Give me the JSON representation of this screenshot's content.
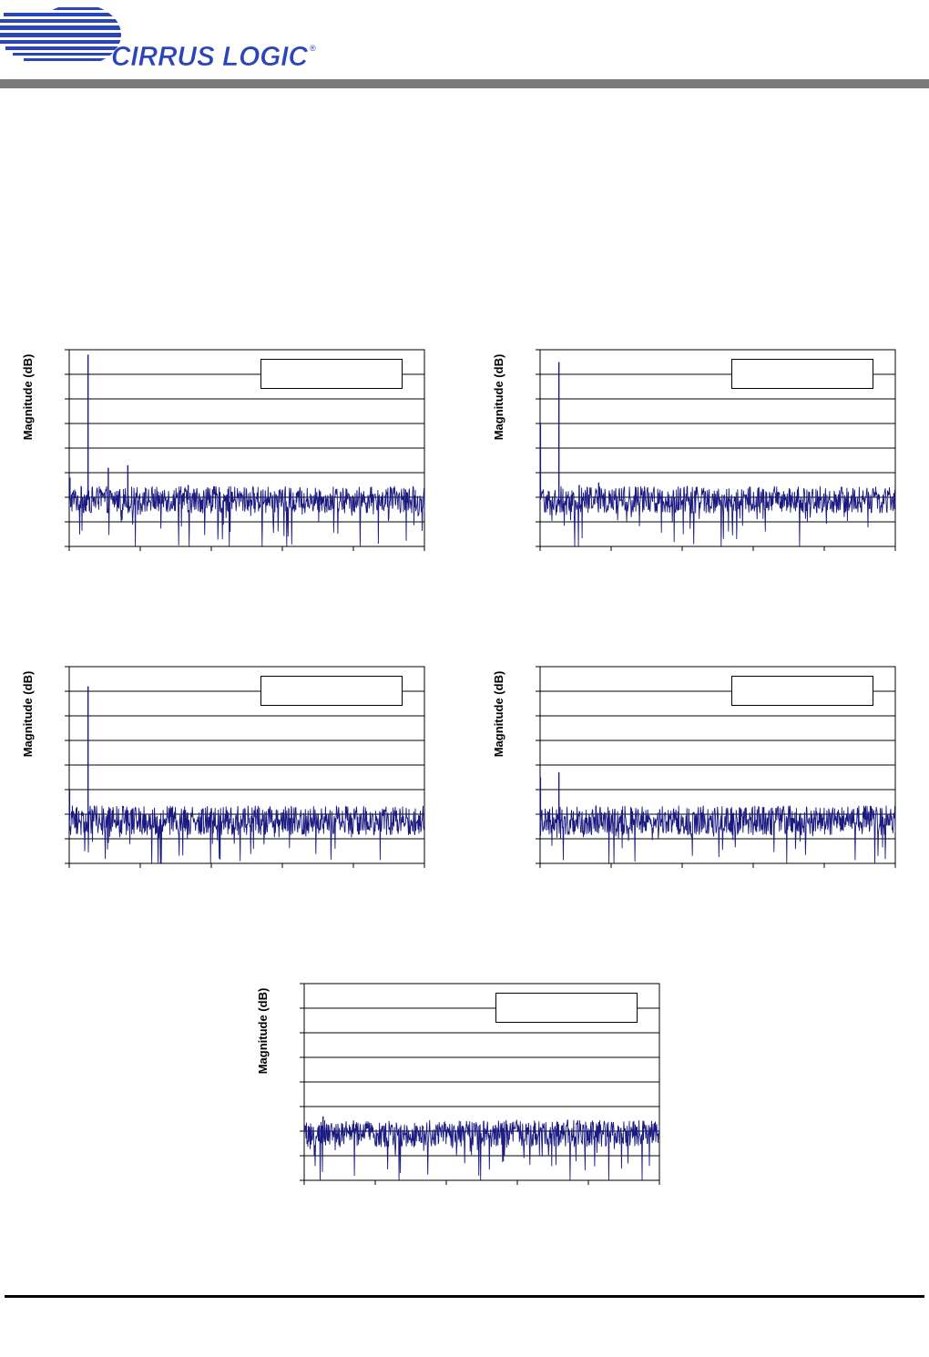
{
  "header": {
    "brand_text": "CIRRUS LOGIC",
    "registered_mark": "®",
    "colors": {
      "brand_blue": "#2b45b8",
      "rule_gray": "#7a7a7a"
    }
  },
  "plots": [
    {
      "ylabel": "Magnitude (dB)",
      "legend": ""
    },
    {
      "ylabel": "Magnitude (dB)",
      "legend": ""
    },
    {
      "ylabel": "Magnitude (dB)",
      "legend": ""
    },
    {
      "ylabel": "Magnitude (dB)",
      "legend": ""
    },
    {
      "ylabel": "Magnitude (dB)",
      "legend": ""
    }
  ],
  "chart_data": [
    {
      "type": "line",
      "title": "",
      "xlabel": "",
      "ylabel": "Magnitude (dB)",
      "grid": true,
      "y_gridlines": 8,
      "x_ticks": 5,
      "xlim": [
        0,
        1
      ],
      "ylim": [
        0,
        8
      ],
      "series": [
        {
          "color": "#1a1a80",
          "noise_floor": 1.9,
          "noise_spread": 0.55
        }
      ],
      "peaks": [
        {
          "x": 0.002,
          "y": 2.8
        },
        {
          "x": 0.053,
          "y": 7.8
        },
        {
          "x": 0.11,
          "y": 3.2
        },
        {
          "x": 0.165,
          "y": 3.3
        },
        {
          "x": 0.335,
          "y": 2.5
        },
        {
          "x": 0.39,
          "y": 2.4
        }
      ]
    },
    {
      "type": "line",
      "title": "",
      "xlabel": "",
      "ylabel": "Magnitude (dB)",
      "grid": true,
      "y_gridlines": 8,
      "x_ticks": 5,
      "xlim": [
        0,
        1
      ],
      "ylim": [
        0,
        8
      ],
      "series": [
        {
          "color": "#1a1a80",
          "noise_floor": 1.9,
          "noise_spread": 0.55
        }
      ],
      "peaks": [
        {
          "x": 0.001,
          "y": 5.0
        },
        {
          "x": 0.053,
          "y": 7.5
        },
        {
          "x": 0.11,
          "y": 2.5
        },
        {
          "x": 0.165,
          "y": 2.6
        }
      ]
    },
    {
      "type": "line",
      "title": "",
      "xlabel": "",
      "ylabel": "Magnitude (dB)",
      "grid": true,
      "y_gridlines": 8,
      "x_ticks": 5,
      "xlim": [
        0,
        1
      ],
      "ylim": [
        0,
        8
      ],
      "series": [
        {
          "color": "#1a1a80",
          "noise_floor": 1.75,
          "noise_spread": 0.6
        }
      ],
      "peaks": [
        {
          "x": 0.001,
          "y": 3.0
        },
        {
          "x": 0.053,
          "y": 7.2
        }
      ]
    },
    {
      "type": "line",
      "title": "",
      "xlabel": "",
      "ylabel": "Magnitude (dB)",
      "grid": true,
      "y_gridlines": 8,
      "x_ticks": 5,
      "xlim": [
        0,
        1
      ],
      "ylim": [
        0,
        8
      ],
      "series": [
        {
          "color": "#1a1a80",
          "noise_floor": 1.75,
          "noise_spread": 0.6
        }
      ],
      "peaks": [
        {
          "x": 0.001,
          "y": 3.5
        },
        {
          "x": 0.053,
          "y": 3.7
        }
      ]
    },
    {
      "type": "line",
      "title": "",
      "xlabel": "",
      "ylabel": "Magnitude (dB)",
      "grid": true,
      "y_gridlines": 8,
      "x_ticks": 5,
      "xlim": [
        0,
        1
      ],
      "ylim": [
        0,
        8
      ],
      "series": [
        {
          "color": "#1a1a80",
          "noise_floor": 1.9,
          "noise_spread": 0.55
        }
      ],
      "peaks": [
        {
          "x": 0.053,
          "y": 2.6
        }
      ]
    }
  ]
}
